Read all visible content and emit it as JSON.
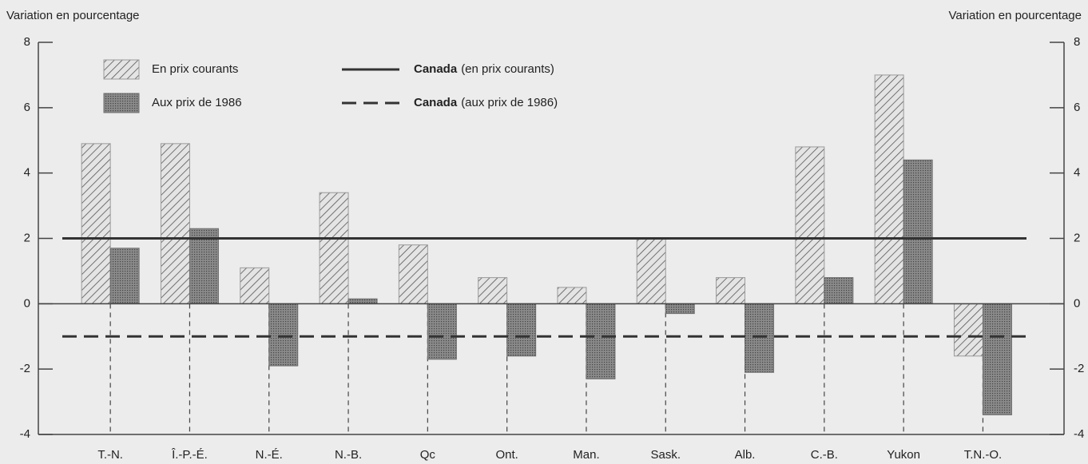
{
  "chart_data": {
    "type": "bar",
    "y_label_left": "Variation en pourcentage",
    "y_label_right": "Variation en pourcentage",
    "categories": [
      "T.-N.",
      "Î.-P.-É.",
      "N.-É.",
      "N.-B.",
      "Qc",
      "Ont.",
      "Man.",
      "Sask.",
      "Alb.",
      "C.-B.",
      "Yukon",
      "T.N.-O."
    ],
    "series": [
      {
        "name": "En prix courants",
        "color": "#9a9a9a",
        "values": [
          4.9,
          4.9,
          1.1,
          3.4,
          1.8,
          0.8,
          0.5,
          2.0,
          0.8,
          4.8,
          7.0,
          -1.6
        ]
      },
      {
        "name": "Aux prix de 1986",
        "color": "#6e6e6e",
        "values": [
          1.7,
          2.3,
          -1.9,
          0.15,
          -1.7,
          -1.6,
          -2.3,
          -0.3,
          -2.1,
          0.8,
          4.4,
          -3.4
        ]
      }
    ],
    "reference_lines": [
      {
        "label": "Canada",
        "note": "(en prix courants)",
        "value": 2.0,
        "style": "solid"
      },
      {
        "label": "Canada",
        "note": "(aux prix de 1986)",
        "value": -1.0,
        "style": "dashed"
      }
    ],
    "ylim": [
      -4,
      8
    ],
    "yticks": [
      -4,
      -2,
      0,
      2,
      4,
      6,
      8
    ]
  }
}
